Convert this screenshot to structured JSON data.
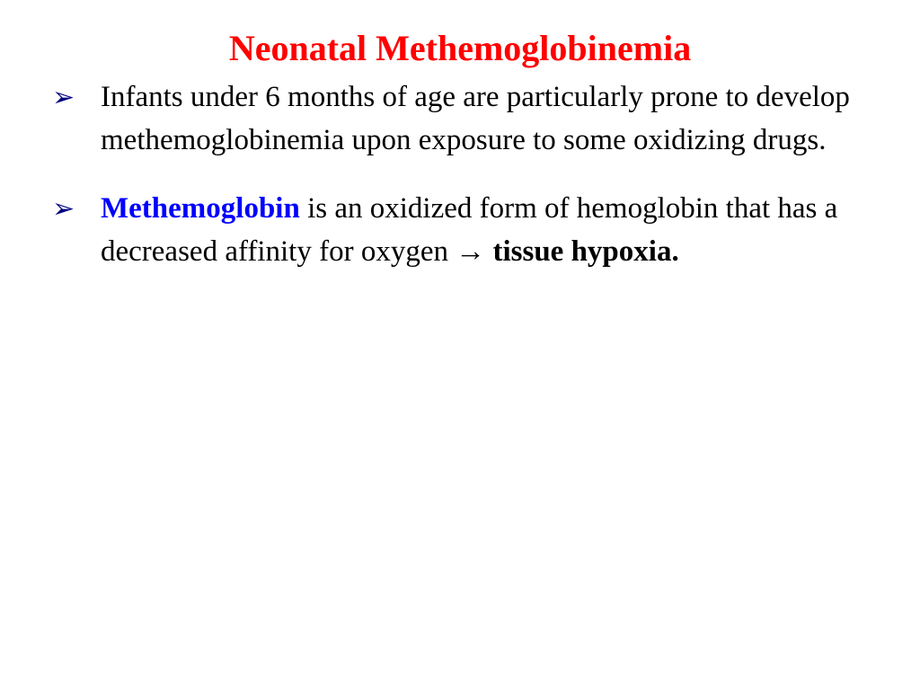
{
  "title": {
    "text": "Neonatal Methemoglobinemia",
    "color": "#ff0000",
    "fontsize": 40
  },
  "body": {
    "fontsize": 33,
    "line_height": 1.45,
    "text_color": "#000000",
    "bullet_marker": "➢",
    "bullet_color": "#000080",
    "bullet_fontsize": 30,
    "highlight_color": "#0000ff"
  },
  "bullets": [
    {
      "runs": [
        {
          "text": "Infants under 6 months of age are particularly prone to develop methemoglobinemia upon exposure to some oxidizing drugs.",
          "style": "normal"
        }
      ]
    },
    {
      "runs": [
        {
          "text": "Methemoglobin",
          "style": "highlight-bold"
        },
        {
          "text": " is an oxidized form of hemoglobin that has a decreased affinity for oxygen ",
          "style": "normal"
        },
        {
          "text": "→",
          "style": "normal"
        },
        {
          "text": " tissue hypoxia.",
          "style": "bold"
        }
      ]
    }
  ]
}
